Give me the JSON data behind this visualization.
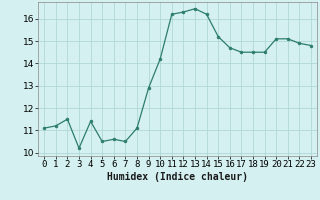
{
  "x": [
    0,
    1,
    2,
    3,
    4,
    5,
    6,
    7,
    8,
    9,
    10,
    11,
    12,
    13,
    14,
    15,
    16,
    17,
    18,
    19,
    20,
    21,
    22,
    23
  ],
  "y": [
    11.1,
    11.2,
    11.5,
    10.2,
    11.4,
    10.5,
    10.6,
    10.5,
    11.1,
    12.9,
    14.2,
    16.2,
    16.3,
    16.45,
    16.2,
    15.2,
    14.7,
    14.5,
    14.5,
    14.5,
    15.1,
    15.1,
    14.9,
    14.8
  ],
  "line_color": "#2d7d6e",
  "marker_color": "#2d7d6e",
  "bg_color": "#d4f0f0",
  "grid_color": "#b0d8d8",
  "xlabel": "Humidex (Indice chaleur)",
  "ylim": [
    9.85,
    16.75
  ],
  "xlim": [
    -0.5,
    23.5
  ],
  "yticks": [
    10,
    11,
    12,
    13,
    14,
    15,
    16
  ],
  "xtick_labels": [
    "0",
    "1",
    "2",
    "3",
    "4",
    "5",
    "6",
    "7",
    "8",
    "9",
    "10",
    "11",
    "12",
    "13",
    "14",
    "15",
    "16",
    "17",
    "18",
    "19",
    "20",
    "21",
    "22",
    "23"
  ],
  "label_fontsize": 7,
  "tick_fontsize": 6.5
}
